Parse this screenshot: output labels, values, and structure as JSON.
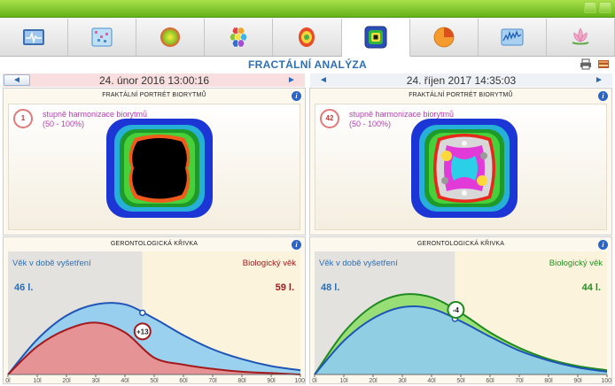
{
  "toolbar": {
    "tabs": [
      {
        "icon": "heart-rate-monitor-icon",
        "active": false
      },
      {
        "icon": "data-grid-icon",
        "active": false
      },
      {
        "icon": "energy-sphere-icon",
        "active": false
      },
      {
        "icon": "hexagon-cluster-icon",
        "active": false
      },
      {
        "icon": "body-scan-icon",
        "active": false
      },
      {
        "icon": "fractal-icon",
        "active": true
      },
      {
        "icon": "pie-chart-icon",
        "active": false
      },
      {
        "icon": "spectrum-graph-icon",
        "active": false
      },
      {
        "icon": "lotus-icon",
        "active": false
      }
    ]
  },
  "header": {
    "title": "FRACTÁLNÍ ANALÝZA"
  },
  "left": {
    "date": "24. únor 2016 13:00:16",
    "fractal": {
      "title": "FRAKTÁLNÍ PORTRÉT BIORYTMŮ",
      "badge": "1",
      "harmony_label": "stupně harmonizace biorytmů",
      "harmony_range": "(50 - 100%)"
    },
    "geronto": {
      "title": "GERONTOLOGICKÁ KŘIVKA",
      "age_label": "Věk v době vyšetření",
      "age_value": "46 l.",
      "bio_label": "Biologický věk",
      "bio_value": "59 l.",
      "diff": "+13",
      "bio_color": "#a3191c"
    }
  },
  "right": {
    "date": "24. říjen 2017 14:35:03",
    "fractal": {
      "title": "FRAKTÁLNÍ PORTRÉT BIORYTMŮ",
      "badge": "42",
      "harmony_label": "stupně harmonizace biorytmů",
      "harmony_range": "(50 - 100%)"
    },
    "geronto": {
      "title": "GERONTOLOGICKÁ KŘIVKA",
      "age_label": "Věk v době vyšetření",
      "age_value": "48 l.",
      "bio_label": "Biologický věk",
      "bio_value": "44 l.",
      "diff": "-4",
      "bio_color": "#229022"
    }
  },
  "x_ticks": [
    "0l",
    "10l",
    "20l",
    "30l",
    "40l",
    "50l",
    "60l",
    "70l",
    "80l",
    "90l",
    "100l"
  ],
  "chart_data": [
    {
      "type": "area",
      "title": "GERONTOLOGICKÁ KŘIVKA",
      "x": [
        0,
        10,
        20,
        30,
        40,
        50,
        60,
        70,
        80,
        90,
        100
      ],
      "xlim": [
        0,
        100
      ],
      "series": [
        {
          "name": "Věk v době vyšetření",
          "values": [
            0,
            25,
            42,
            50,
            50,
            40,
            28,
            18,
            11,
            6,
            3
          ]
        },
        {
          "name": "Biologický věk",
          "values": [
            0,
            20,
            32,
            37,
            30,
            12,
            7,
            4,
            2,
            1,
            0
          ]
        }
      ],
      "marker_age": 46,
      "marker_bio": 59
    },
    {
      "type": "area",
      "title": "GERONTOLOGICKÁ KŘIVKA",
      "x": [
        0,
        10,
        20,
        30,
        40,
        50,
        60,
        70,
        80,
        90,
        100
      ],
      "xlim": [
        0,
        100
      ],
      "series": [
        {
          "name": "Věk v době vyšetření",
          "values": [
            0,
            24,
            40,
            48,
            47,
            38,
            27,
            17,
            10,
            5,
            2
          ]
        },
        {
          "name": "Biologický věk",
          "values": [
            0,
            30,
            49,
            57,
            55,
            44,
            30,
            19,
            11,
            6,
            3
          ]
        }
      ],
      "marker_age": 48,
      "marker_bio": 44
    }
  ]
}
